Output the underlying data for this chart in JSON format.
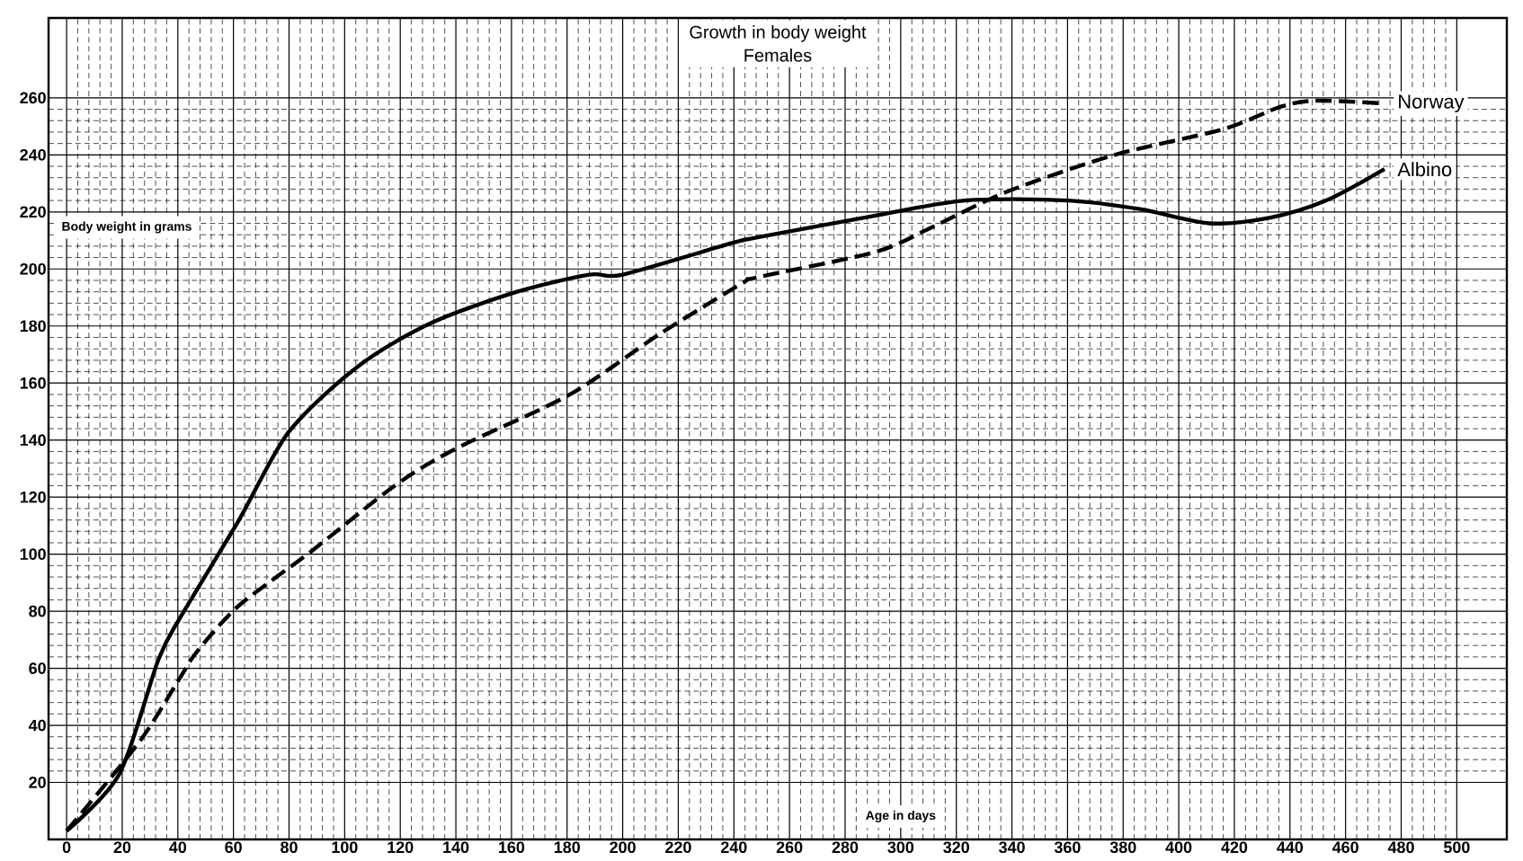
{
  "chart_data": {
    "type": "line",
    "title": "Growth in body weight",
    "subtitle": "Females",
    "xlabel": "Age in days",
    "ylabel": "Body weight in grams",
    "xlim": [
      -6.5,
      518
    ],
    "ylim": [
      0,
      288
    ],
    "xticks": [
      0,
      20,
      40,
      60,
      80,
      100,
      120,
      140,
      160,
      180,
      200,
      220,
      240,
      260,
      280,
      300,
      320,
      340,
      360,
      380,
      400,
      420,
      440,
      460,
      480,
      500
    ],
    "yticks": [
      20,
      40,
      60,
      80,
      100,
      120,
      140,
      160,
      180,
      200,
      220,
      240,
      260
    ],
    "grid": true,
    "series": [
      {
        "name": "Norway",
        "color": "#000000",
        "line_style": "dashed",
        "x": [
          0,
          26,
          41,
          47,
          62,
          88,
          118,
          140,
          181,
          213,
          243,
          248,
          291,
          312,
          338,
          377,
          416,
          437,
          450,
          474
        ],
        "values": [
          3,
          34,
          57,
          66,
          82,
          101,
          124,
          137,
          156,
          177,
          195,
          197,
          206,
          215,
          227,
          240,
          249,
          257,
          259,
          258
        ]
      },
      {
        "name": "Albino",
        "color": "#000000",
        "line_style": "solid",
        "x": [
          0,
          19,
          33,
          41,
          62,
          80,
          105,
          131,
          162,
          188,
          200,
          239,
          248,
          287,
          323,
          360,
          386,
          411,
          433,
          453,
          474
        ],
        "values": [
          3,
          23,
          63,
          78,
          112,
          143,
          166,
          181,
          192,
          198,
          198,
          209,
          211,
          218,
          224,
          224,
          221,
          216,
          218,
          224,
          235
        ]
      }
    ]
  }
}
